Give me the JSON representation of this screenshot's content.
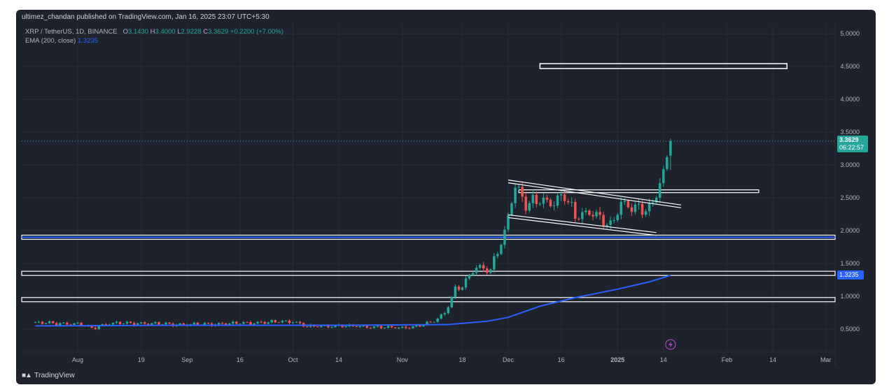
{
  "publisher": "ultimez_chandan published on TradingView.com, Jan 16, 2025 23:07 UTC+5:30",
  "symbol": {
    "name": "XRP / TetherUS, 1D, BINANCE",
    "o_label": "O",
    "o": "3.1430",
    "h_label": "H",
    "h": "3.4000",
    "l_label": "L",
    "l": "2.9228",
    "c_label": "C",
    "c": "3.3629",
    "change": "+0.2200 (+7.00%)"
  },
  "indicator": {
    "label": "EMA (200, close)",
    "value": "1.3235"
  },
  "last_price": {
    "price": "3.3629",
    "countdown": "06:22:57"
  },
  "brand": "TradingView",
  "colors": {
    "up": "#26a69a",
    "down": "#ef5350",
    "ema": "#2962ff",
    "background": "#1e222d",
    "grid": "#2a2e39"
  },
  "chart_data": {
    "type": "candlestick",
    "title": "XRP / TetherUS, 1D, BINANCE",
    "x_ticks": [
      "Aug",
      "19",
      "Sep",
      "16",
      "Oct",
      "14",
      "Nov",
      "18",
      "Dec",
      "16",
      "2025",
      "14",
      "Feb",
      "14",
      "Mar"
    ],
    "y_ticks": [
      "5.0000",
      "4.5000",
      "4.0000",
      "3.5000",
      "3.0000",
      "2.5000",
      "2.0000",
      "1.5000",
      "1.0000",
      "0.5000"
    ],
    "ylim": [
      0.15,
      5.15
    ],
    "series": [
      {
        "name": "XRP / TetherUS",
        "close_points": [
          [
            "Jul 20",
            0.6
          ],
          [
            "Aug 1",
            0.58
          ],
          [
            "Aug 5",
            0.52
          ],
          [
            "Aug 10",
            0.59
          ],
          [
            "Aug 19",
            0.59
          ],
          [
            "Sep 1",
            0.57
          ],
          [
            "Sep 16",
            0.59
          ],
          [
            "Oct 1",
            0.62
          ],
          [
            "Oct 5",
            0.54
          ],
          [
            "Oct 14",
            0.55
          ],
          [
            "Oct 31",
            0.52
          ],
          [
            "Nov 5",
            0.54
          ],
          [
            "Nov 10",
            0.62
          ],
          [
            "Nov 13",
            0.75
          ],
          [
            "Nov 16",
            1.1
          ],
          [
            "Nov 18",
            1.15
          ],
          [
            "Nov 22",
            1.45
          ],
          [
            "Nov 26",
            1.4
          ],
          [
            "Nov 30",
            1.95
          ],
          [
            "Dec 2",
            2.45
          ],
          [
            "Dec 3",
            2.7
          ],
          [
            "Dec 6",
            2.4
          ],
          [
            "Dec 10",
            2.45
          ],
          [
            "Dec 13",
            2.4
          ],
          [
            "Dec 17",
            2.55
          ],
          [
            "Dec 20",
            2.2
          ],
          [
            "Dec 25",
            2.28
          ],
          [
            "Dec 30",
            2.05
          ],
          [
            "Jan 2",
            2.4
          ],
          [
            "Jan 6",
            2.35
          ],
          [
            "Jan 10",
            2.3
          ],
          [
            "Jan 12",
            2.55
          ],
          [
            "Jan 14",
            2.85
          ],
          [
            "Jan 15",
            3.14
          ],
          [
            "Jan 16",
            3.36
          ]
        ]
      },
      {
        "name": "EMA (200, close)",
        "points": [
          [
            "Jul 20",
            0.55
          ],
          [
            "Sep 1",
            0.56
          ],
          [
            "Oct 14",
            0.56
          ],
          [
            "Nov 14",
            0.57
          ],
          [
            "Nov 25",
            0.62
          ],
          [
            "Dec 1",
            0.68
          ],
          [
            "Dec 10",
            0.85
          ],
          [
            "Dec 20",
            0.98
          ],
          [
            "Jan 1",
            1.11
          ],
          [
            "Jan 10",
            1.22
          ],
          [
            "Jan 16",
            1.32
          ]
        ]
      }
    ],
    "horizontal_levels": [
      1.9,
      1.35,
      0.95,
      2.6,
      4.5
    ]
  }
}
